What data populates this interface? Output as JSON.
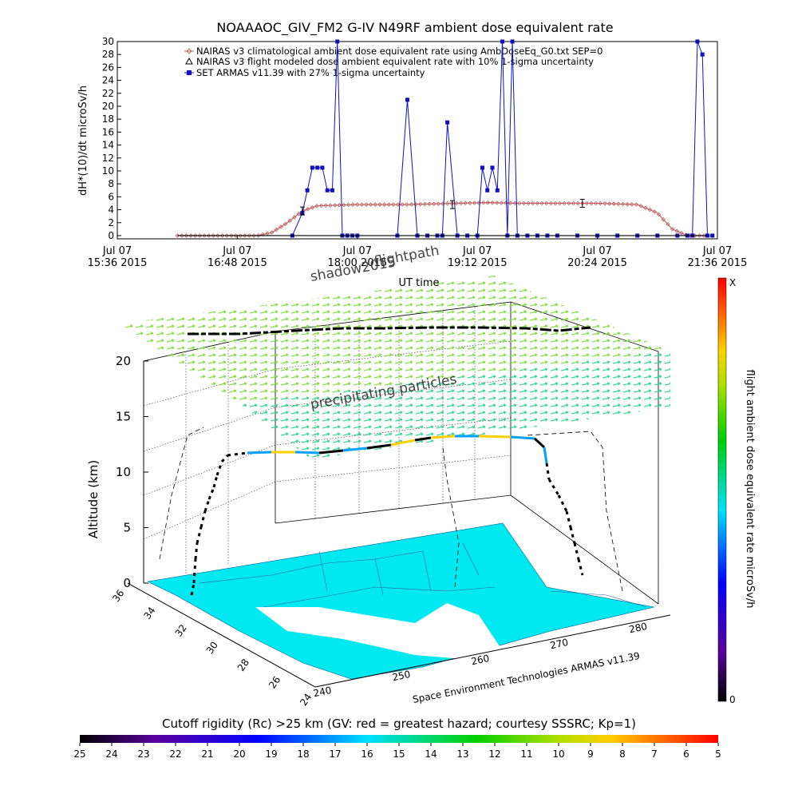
{
  "colors": {
    "climatological": "#c06060",
    "armas": "#1010c0",
    "modeled": "#000000",
    "ocean": "#00e8f0",
    "grid": "#000000"
  },
  "top_panel": {
    "title": "NOAAAOC_GIV_FM2 G-IV    N49RF  ambient dose equivalent rate",
    "ylabel": "dH*(10)/dt microSv/h",
    "xlabel": "UT time",
    "y_ticks": [
      "0",
      "2",
      "4",
      "6",
      "8",
      "10",
      "12",
      "14",
      "16",
      "18",
      "20",
      "22",
      "24",
      "26",
      "28",
      "30"
    ],
    "x_ticks": [
      {
        "line1": "Jul 07",
        "line2": "15:36 2015"
      },
      {
        "line1": "Jul 07",
        "line2": "16:48 2015"
      },
      {
        "line1": "Jul 07",
        "line2": "18:00 2015"
      },
      {
        "line1": "Jul 07",
        "line2": "19:12 2015"
      },
      {
        "line1": "Jul 07",
        "line2": "20:24 2015"
      },
      {
        "line1": "Jul 07",
        "line2": "21:36 2015"
      }
    ],
    "legend": [
      "NAIRAS v3 climatological ambient dose equivalent rate using AmbDoseEq_G0.txt SEP=0",
      "NAIRAS v3 flight modeled dose ambient equivalent rate with 10% 1-sigma uncertainty",
      "SET ARMAS v11.39 with 27% 1-sigma uncertainty"
    ]
  },
  "chart_data": [
    {
      "type": "line",
      "title": "NOAAAOC_GIV_FM2 G-IV    N49RF  ambient dose equivalent rate",
      "xlabel": "UT time",
      "ylabel": "dH*(10)/dt microSv/h",
      "x_unit": "UT hours",
      "xlim": [
        15.6,
        21.6
      ],
      "ylim": [
        -0.5,
        30
      ],
      "series": [
        {
          "name": "NAIRAS v3 climatological ambient dose equivalent rate using AmbDoseEq_G0.txt SEP=0",
          "x": [
            16.2,
            16.5,
            16.8,
            17.0,
            17.15,
            17.3,
            17.45,
            17.6,
            18.0,
            18.5,
            19.0,
            19.3,
            19.6,
            20.0,
            20.4,
            20.8,
            21.0,
            21.15,
            21.3,
            21.5
          ],
          "y": [
            0,
            0,
            0,
            0,
            0.5,
            2.0,
            3.8,
            4.6,
            4.8,
            4.8,
            5.0,
            5.1,
            5.0,
            5.0,
            5.0,
            4.8,
            3.5,
            1.0,
            0,
            0
          ]
        },
        {
          "name": "NAIRAS v3 flight modeled dose ambient equivalent rate with 10% 1-sigma uncertainty",
          "x": [
            17.45,
            18.95,
            20.25
          ],
          "y": [
            3.8,
            4.8,
            5.0
          ]
        },
        {
          "name": "SET ARMAS v11.39 with 27% 1-sigma uncertainty",
          "x": [
            17.35,
            17.45,
            17.5,
            17.55,
            17.6,
            17.65,
            17.7,
            17.75,
            17.8,
            17.85,
            17.9,
            17.95,
            18.0,
            18.4,
            18.5,
            18.6,
            18.7,
            18.8,
            18.85,
            18.9,
            19.0,
            19.1,
            19.2,
            19.25,
            19.3,
            19.35,
            19.4,
            19.45,
            19.5,
            19.55,
            19.6,
            19.7,
            19.8,
            19.9,
            20.0,
            20.2,
            20.4,
            20.6,
            20.8,
            21.0,
            21.2,
            21.3,
            21.35,
            21.4,
            21.45,
            21.5,
            21.55
          ],
          "y": [
            0,
            3.5,
            7,
            10.5,
            10.5,
            10.5,
            7,
            7,
            30,
            0,
            0,
            0,
            0,
            0,
            21,
            0,
            0,
            0,
            0,
            17.5,
            0,
            0,
            0,
            10.5,
            7,
            10.5,
            7,
            30,
            0,
            30,
            0,
            0,
            0,
            0,
            0,
            0,
            0,
            0,
            0,
            0,
            0,
            0,
            0,
            30,
            28,
            0,
            0
          ]
        }
      ]
    },
    {
      "type": "scatter",
      "title": "",
      "zlabel": "Altitude (km)",
      "z_ticks": [
        "0",
        "5",
        "10",
        "15",
        "20"
      ],
      "x_ticks": [
        "240",
        "250",
        "260",
        "270",
        "280"
      ],
      "y_ticks": [
        "24",
        "26",
        "28",
        "30",
        "32",
        "34",
        "36"
      ],
      "annotations": [
        "shadow2015",
        "flightpath",
        "precipitating particles"
      ],
      "credit": "Space Environment Technologies ARMAS v11.39",
      "altitude_km": [
        0,
        2,
        4,
        6,
        8,
        10,
        11,
        12,
        12,
        12,
        12,
        12,
        12,
        12,
        13,
        13,
        13,
        13,
        13,
        13,
        12,
        10,
        8,
        5,
        2,
        0
      ]
    }
  ],
  "labels_3d": {
    "shadow": "shadow2015",
    "flightpath": "flightpath",
    "precip": "precipitating particles",
    "zlabel": "Altitude (km)",
    "credit": "Space Environment Technologies ARMAS v11.39"
  },
  "colorbar_right": {
    "label": "flight ambient dose equivalent rate microSv/h",
    "top": "X",
    "bottom": "0"
  },
  "colorbar_bottom": {
    "title": "Cutoff rigidity (Rc) >25 km (GV: red = greatest hazard; courtesy SSSRC; Kp=1)",
    "ticks": [
      "25",
      "24",
      "23",
      "22",
      "21",
      "20",
      "19",
      "18",
      "17",
      "16",
      "15",
      "14",
      "13",
      "12",
      "11",
      "10",
      "9",
      "8",
      "7",
      "6",
      "5"
    ]
  }
}
